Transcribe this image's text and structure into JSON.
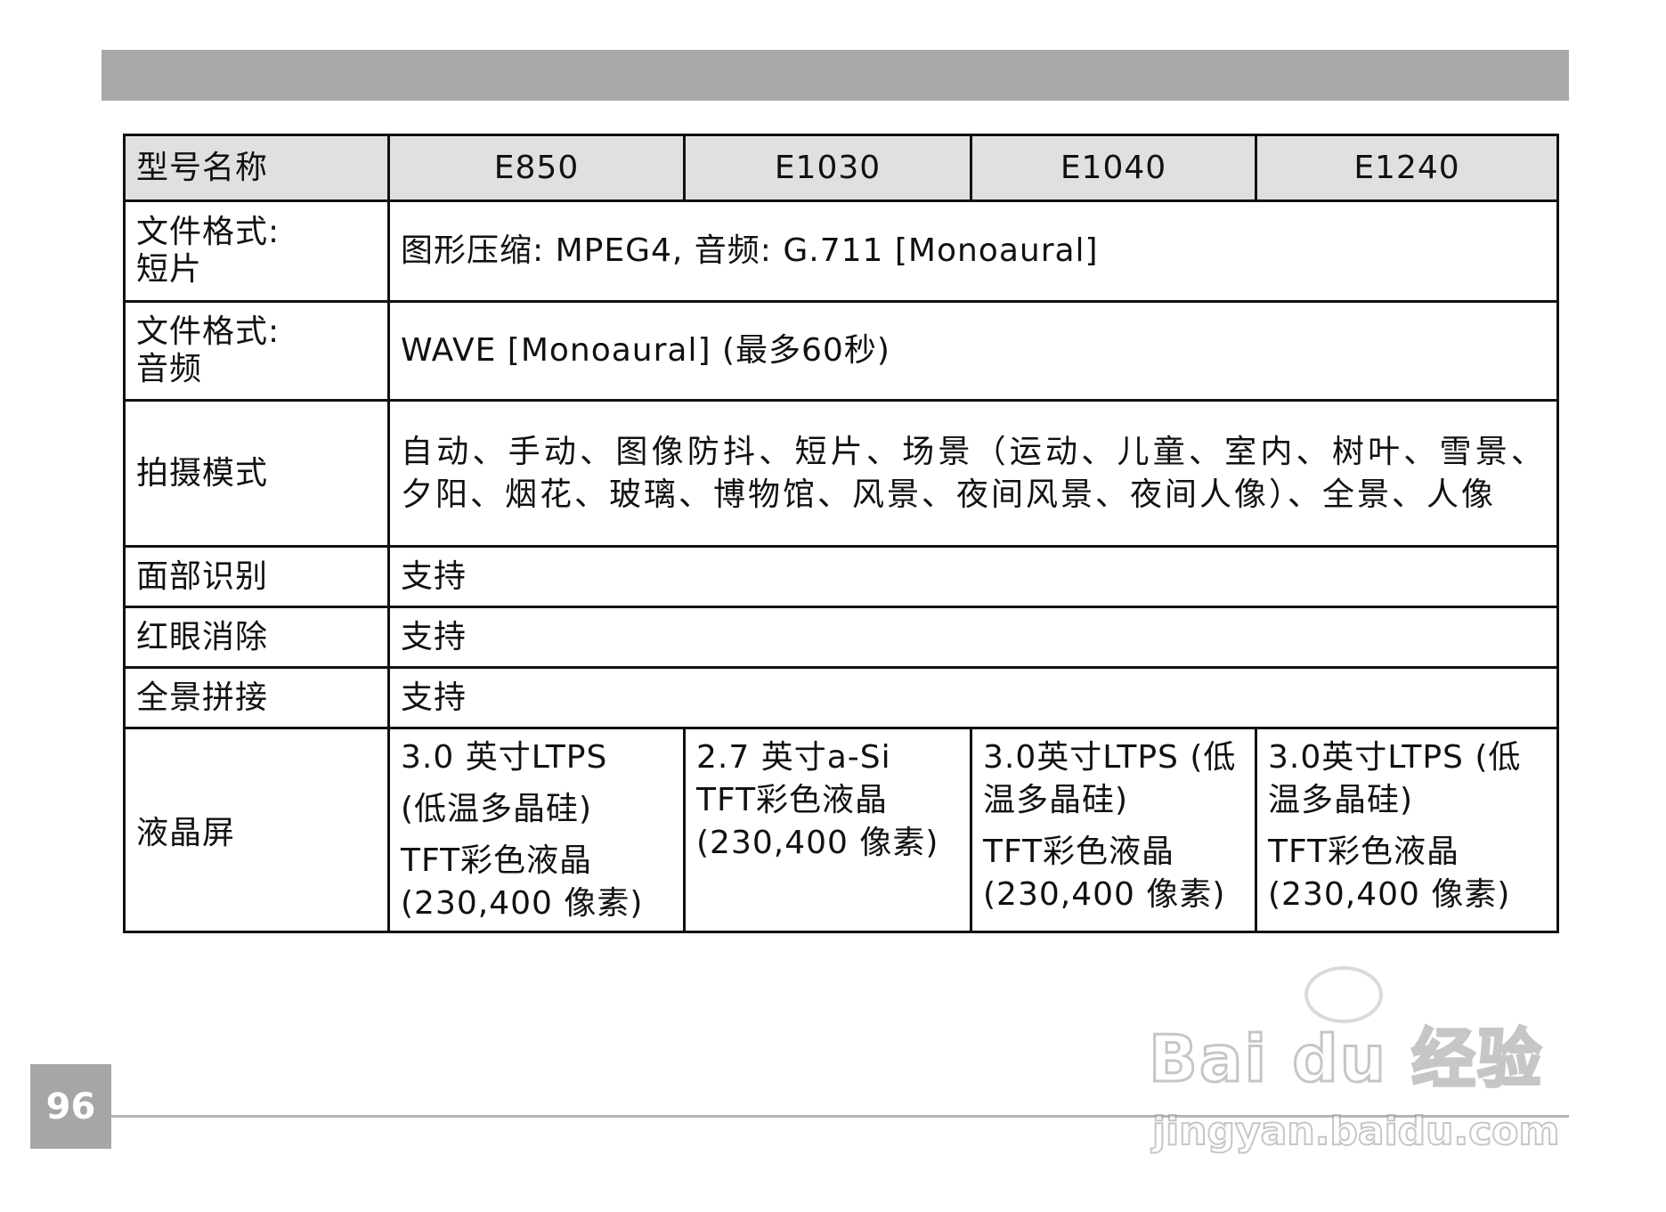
{
  "page_number": "96",
  "table": {
    "header": {
      "label": "型号名称",
      "models": [
        "E850",
        "E1030",
        "E1040",
        "E1240"
      ]
    },
    "rows": [
      {
        "label_lines": [
          "文件格式:",
          "短片"
        ],
        "value": "图形压缩: MPEG4, 音频: G.711 [Monoaural]"
      },
      {
        "label_lines": [
          "文件格式:",
          "音频"
        ],
        "value": "WAVE [Monoaural] (最多60秒)"
      },
      {
        "label": "拍摄模式",
        "value": "自动、手动、图像防抖、短片、场景（运动、儿童、室内、树叶、雪景、夕阳、烟花、玻璃、博物馆、风景、夜间风景、夜间人像）、全景、人像"
      },
      {
        "label": "面部识别",
        "value": "支持"
      },
      {
        "label": "红眼消除",
        "value": "支持"
      },
      {
        "label": "全景拼接",
        "value": "支持"
      }
    ],
    "lcd": {
      "label": "液晶屏",
      "cells": [
        [
          "3.0 英寸LTPS",
          "(低温多晶硅)",
          "TFT彩色液晶",
          "(230,400 像素)"
        ],
        [
          "2.7 英寸a-Si",
          "TFT彩色液晶",
          "(230,400 像素)"
        ],
        [
          "3.0英寸LTPS (低温多晶硅)",
          "TFT彩色液晶",
          "(230,400 像素)"
        ],
        [
          "3.0英寸LTPS (低温多晶硅)",
          "TFT彩色液晶",
          "(230,400 像素)"
        ]
      ]
    }
  },
  "watermark": {
    "logo": "Bai du 经验",
    "url": "jingyan.baidu.com"
  }
}
